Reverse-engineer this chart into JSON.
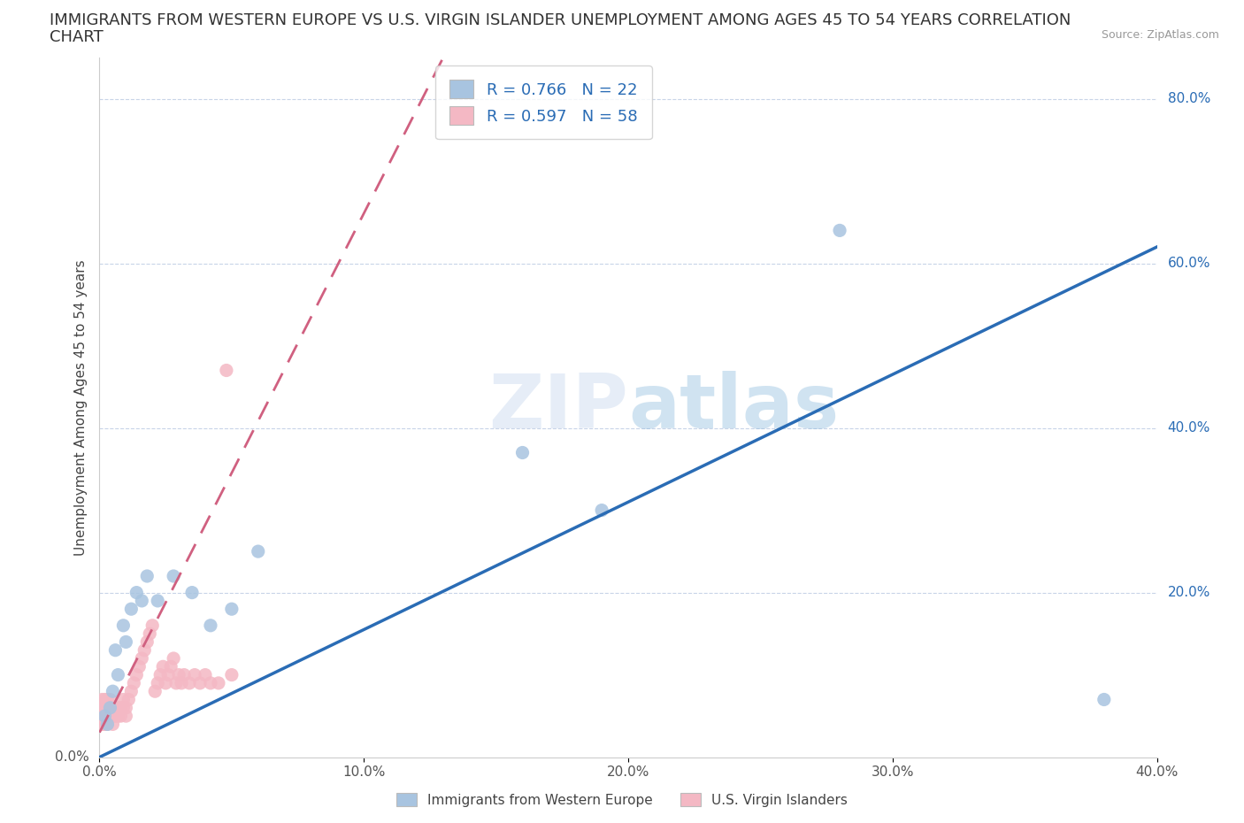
{
  "title_line1": "IMMIGRANTS FROM WESTERN EUROPE VS U.S. VIRGIN ISLANDER UNEMPLOYMENT AMONG AGES 45 TO 54 YEARS CORRELATION",
  "title_line2": "CHART",
  "source_text": "Source: ZipAtlas.com",
  "xlabel": "Immigrants from Western Europe",
  "ylabel": "Unemployment Among Ages 45 to 54 years",
  "xlim": [
    0.0,
    0.4
  ],
  "ylim": [
    0.0,
    0.85
  ],
  "xtick_labels": [
    "0.0%",
    "10.0%",
    "20.0%",
    "30.0%",
    "40.0%"
  ],
  "xtick_vals": [
    0.0,
    0.1,
    0.2,
    0.3,
    0.4
  ],
  "ytick_labels_right": [
    "20.0%",
    "40.0%",
    "60.0%",
    "80.0%"
  ],
  "ytick_vals_right": [
    0.2,
    0.4,
    0.6,
    0.8
  ],
  "blue_R": 0.766,
  "blue_N": 22,
  "pink_R": 0.597,
  "pink_N": 58,
  "blue_color": "#a8c4e0",
  "pink_color": "#f4b8c4",
  "blue_line_color": "#2a6cb5",
  "pink_line_color": "#d06080",
  "watermark": "ZIPatlas",
  "blue_line_x0": 0.0,
  "blue_line_y0": 0.0,
  "blue_line_x1": 0.4,
  "blue_line_y1": 0.62,
  "pink_line_x0": 0.0,
  "pink_line_y0": 0.03,
  "pink_line_x1": 0.13,
  "pink_line_y1": 0.85,
  "blue_scatter_x": [
    0.002,
    0.003,
    0.004,
    0.005,
    0.006,
    0.007,
    0.009,
    0.01,
    0.012,
    0.014,
    0.016,
    0.018,
    0.022,
    0.028,
    0.035,
    0.042,
    0.05,
    0.06,
    0.16,
    0.19,
    0.28,
    0.38
  ],
  "blue_scatter_y": [
    0.05,
    0.04,
    0.06,
    0.08,
    0.13,
    0.1,
    0.16,
    0.14,
    0.18,
    0.2,
    0.19,
    0.22,
    0.19,
    0.22,
    0.2,
    0.16,
    0.18,
    0.25,
    0.37,
    0.3,
    0.64,
    0.07
  ],
  "pink_scatter_x": [
    0.001,
    0.001,
    0.001,
    0.001,
    0.002,
    0.002,
    0.002,
    0.002,
    0.003,
    0.003,
    0.003,
    0.003,
    0.004,
    0.004,
    0.004,
    0.005,
    0.005,
    0.005,
    0.006,
    0.006,
    0.007,
    0.007,
    0.008,
    0.008,
    0.009,
    0.009,
    0.01,
    0.01,
    0.011,
    0.012,
    0.013,
    0.014,
    0.015,
    0.016,
    0.017,
    0.018,
    0.019,
    0.02,
    0.021,
    0.022,
    0.023,
    0.024,
    0.025,
    0.026,
    0.027,
    0.028,
    0.029,
    0.03,
    0.031,
    0.032,
    0.034,
    0.036,
    0.038,
    0.04,
    0.042,
    0.045,
    0.048,
    0.05
  ],
  "pink_scatter_y": [
    0.04,
    0.05,
    0.06,
    0.07,
    0.04,
    0.05,
    0.06,
    0.07,
    0.04,
    0.05,
    0.06,
    0.07,
    0.05,
    0.06,
    0.07,
    0.04,
    0.05,
    0.06,
    0.05,
    0.06,
    0.05,
    0.06,
    0.05,
    0.06,
    0.06,
    0.07,
    0.05,
    0.06,
    0.07,
    0.08,
    0.09,
    0.1,
    0.11,
    0.12,
    0.13,
    0.14,
    0.15,
    0.16,
    0.08,
    0.09,
    0.1,
    0.11,
    0.09,
    0.1,
    0.11,
    0.12,
    0.09,
    0.1,
    0.09,
    0.1,
    0.09,
    0.1,
    0.09,
    0.1,
    0.09,
    0.09,
    0.47,
    0.1
  ],
  "background_color": "#ffffff",
  "grid_color": "#c8d4e8",
  "title_fontsize": 13,
  "axis_label_fontsize": 11,
  "tick_fontsize": 11
}
